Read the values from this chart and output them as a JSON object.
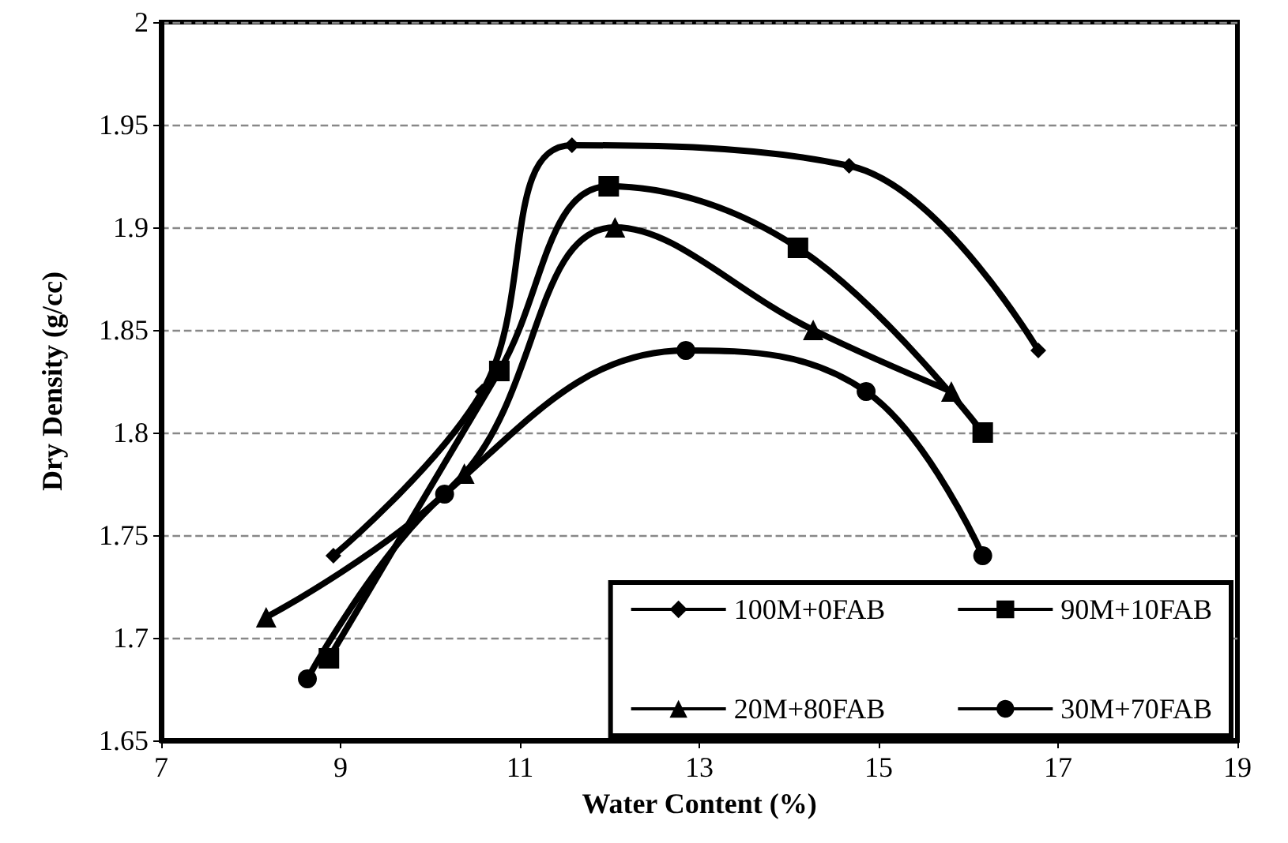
{
  "chart_data": {
    "type": "line",
    "xlabel": "Water Content (%)",
    "ylabel": "Dry Density (g/cc)",
    "xlim": [
      7,
      19
    ],
    "xticks": [
      7,
      9,
      11,
      13,
      15,
      17,
      19
    ],
    "ylim": [
      1.65,
      2
    ],
    "yticks": [
      1.65,
      1.7,
      1.75,
      1.8,
      1.85,
      1.9,
      1.95,
      2
    ],
    "grid": "y",
    "legend": "bottom right",
    "line_style": "solid",
    "series": [
      {
        "name": "100M+0FAB",
        "color": "#000000",
        "marker": "diamond",
        "x": [
          8.92,
          10.58,
          11.58,
          14.67,
          16.78
        ],
        "values": [
          1.74,
          1.82,
          1.94,
          1.93,
          1.84
        ]
      },
      {
        "name": "90M+10FAB",
        "color": "#000000",
        "marker": "square",
        "x": [
          8.87,
          10.77,
          11.99,
          14.1,
          16.16
        ],
        "values": [
          1.69,
          1.83,
          1.92,
          1.89,
          1.8
        ]
      },
      {
        "name": "20M+80FAB",
        "color": "#000000",
        "marker": "triangle",
        "x": [
          8.17,
          10.38,
          12.06,
          14.27,
          15.81
        ],
        "values": [
          1.71,
          1.78,
          1.9,
          1.85,
          1.82
        ]
      },
      {
        "name": "30M+70FAB",
        "color": "#000000",
        "marker": "circle",
        "x": [
          8.63,
          10.16,
          12.85,
          14.86,
          16.16
        ],
        "values": [
          1.68,
          1.77,
          1.84,
          1.82,
          1.74
        ]
      }
    ]
  }
}
